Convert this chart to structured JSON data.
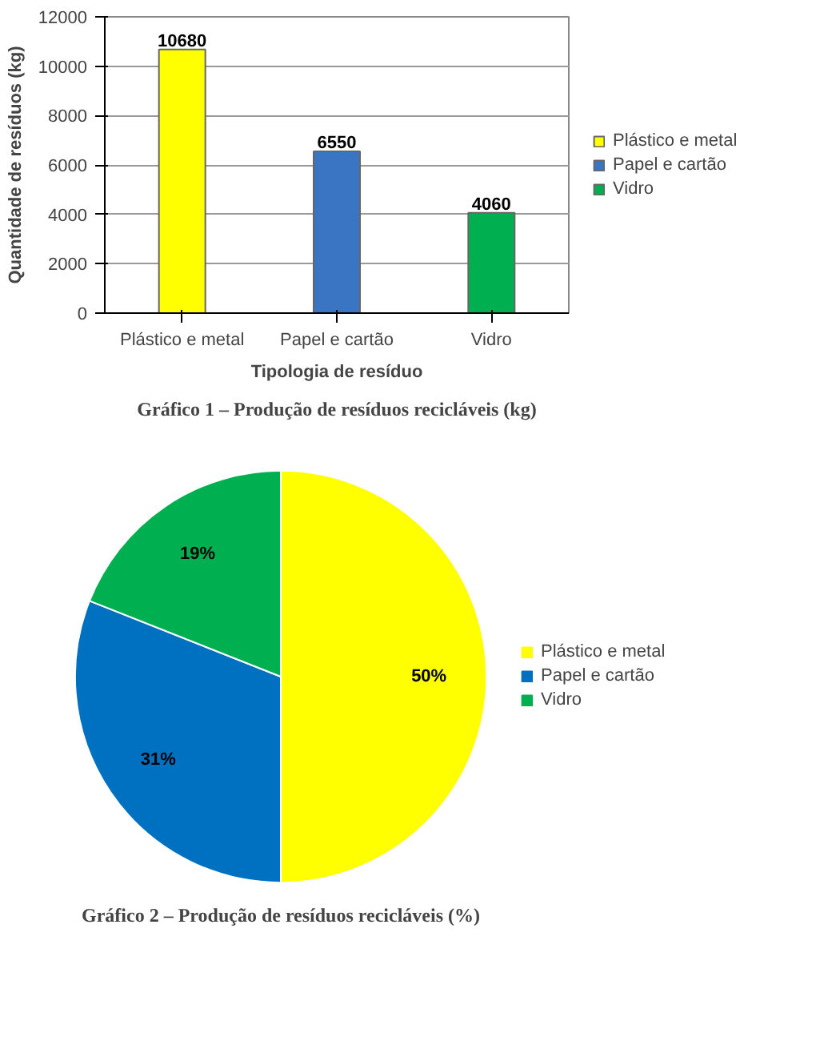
{
  "chart_data": [
    {
      "type": "bar",
      "categories": [
        "Plástico e metal",
        "Papel e cartão",
        "Vidro"
      ],
      "series": [
        {
          "name": "Plástico e metal",
          "color": "#ffff00",
          "values": [
            10680,
            null,
            null
          ]
        },
        {
          "name": "Papel e cartão",
          "color": "#3a75c4",
          "values": [
            null,
            6550,
            null
          ]
        },
        {
          "name": "Vidro",
          "color": "#00b050",
          "values": [
            null,
            null,
            4060
          ]
        }
      ],
      "ylim": [
        0,
        12000
      ],
      "yticks": [
        0,
        2000,
        4000,
        6000,
        8000,
        10000,
        12000
      ],
      "grid": "y",
      "legend": "right",
      "data_labels": true,
      "xlabel": "Tipologia de resíduo",
      "ylabel": "Quantidade de resíduos (kg)",
      "annotations": [
        "Gráfico 1 – Produção de resíduos recicláveis (kg)"
      ]
    },
    {
      "type": "pie",
      "categories": [
        "Plástico e metal",
        "Papel e cartão",
        "Vidro"
      ],
      "values": [
        50,
        31,
        19
      ],
      "colors": [
        "#ffff00",
        "#0070c0",
        "#00b050"
      ],
      "value_labels": [
        "50%",
        "31%",
        "19%"
      ],
      "legend": "right",
      "annotations": [
        "Gráfico 2 – Produção de resíduos recicláveis (%)"
      ]
    }
  ]
}
